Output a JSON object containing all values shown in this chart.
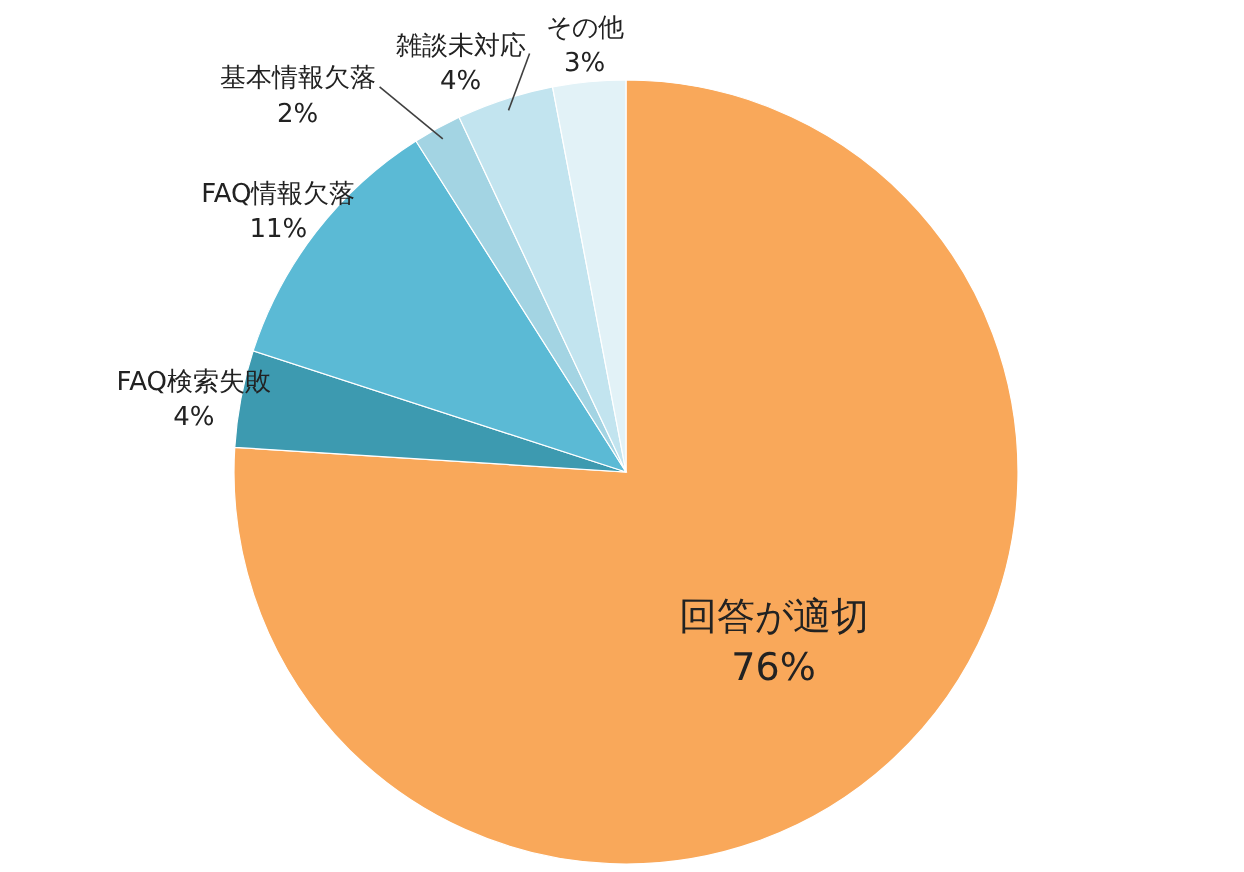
{
  "chart_data": {
    "type": "pie",
    "categories": [
      "回答が適切",
      "FAQ検索失敗",
      "FAQ情報欠落",
      "基本情報欠落",
      "雑談未対応",
      "その他"
    ],
    "values": [
      76,
      4,
      11,
      2,
      4,
      3
    ],
    "value_labels": [
      "76%",
      "4%",
      "11%",
      "2%",
      "4%",
      "3%"
    ],
    "colors": [
      "#f9a85a",
      "#3d9ab0",
      "#5bbad5",
      "#a3d4e3",
      "#c2e4ef",
      "#e2f2f7"
    ]
  }
}
